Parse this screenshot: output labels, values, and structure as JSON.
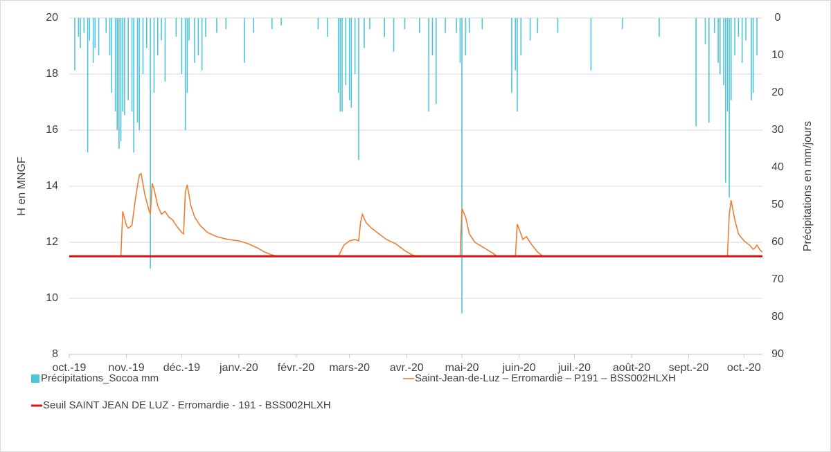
{
  "chart_data": {
    "type": "combo",
    "ylabel": "H en MNGF",
    "y2label": "Précipitations en mm/jours",
    "xlim": [
      0,
      376
    ],
    "xticks": [
      {
        "value": 0,
        "label": "oct.-19"
      },
      {
        "value": 31,
        "label": "nov.-19"
      },
      {
        "value": 61,
        "label": "déc.-19"
      },
      {
        "value": 92,
        "label": "janv.-20"
      },
      {
        "value": 123,
        "label": "févr.-20"
      },
      {
        "value": 152,
        "label": "mars-20"
      },
      {
        "value": 183,
        "label": "avr.-20"
      },
      {
        "value": 213,
        "label": "mai-20"
      },
      {
        "value": 244,
        "label": "juin-20"
      },
      {
        "value": 274,
        "label": "juil.-20"
      },
      {
        "value": 305,
        "label": "août-20"
      },
      {
        "value": 336,
        "label": "sept.-20"
      },
      {
        "value": 366,
        "label": "oct.-20"
      }
    ],
    "ylim": [
      8,
      20
    ],
    "yticks": [
      8,
      10,
      12,
      14,
      16,
      18,
      20
    ],
    "y2lim": [
      0,
      90
    ],
    "y2_reversed": true,
    "y2ticks": [
      0,
      10,
      20,
      30,
      40,
      50,
      60,
      70,
      80,
      90
    ],
    "grid": true,
    "legend": "bottom",
    "series": [
      {
        "name": "Précipitations_Socoa mm",
        "type": "bar",
        "axis": "y2",
        "color": "#4cc4db",
        "x": [
          3,
          5,
          6,
          8,
          10,
          11,
          13,
          14,
          16,
          20,
          22,
          23,
          25,
          26,
          27,
          28,
          29,
          30,
          32,
          34,
          35,
          37,
          38,
          40,
          42,
          44,
          46,
          48,
          50,
          52,
          58,
          61,
          63,
          64,
          65,
          68,
          70,
          72,
          74,
          80,
          85,
          95,
          100,
          110,
          115,
          135,
          140,
          146,
          147,
          148,
          150,
          152,
          153,
          155,
          157,
          160,
          163,
          171,
          176,
          182,
          190,
          195,
          197,
          199,
          204,
          210,
          212,
          213,
          215,
          217,
          224,
          240,
          242,
          243,
          245,
          250,
          254,
          265,
          283,
          300,
          320,
          340,
          345,
          347,
          350,
          352,
          353,
          355,
          356,
          357,
          358,
          359,
          361,
          363,
          365,
          367,
          370,
          371,
          373
        ],
        "values": [
          14,
          5,
          8,
          4,
          36,
          6,
          12,
          8,
          10,
          4,
          10,
          20,
          25,
          30,
          35,
          33,
          25,
          26,
          22,
          25,
          36,
          28,
          30,
          15,
          8,
          67,
          20,
          10,
          6,
          17,
          5,
          15,
          30,
          20,
          6,
          12,
          10,
          14,
          5,
          4,
          3,
          12,
          4,
          3,
          2,
          3,
          5,
          20,
          25,
          25,
          18,
          22,
          24,
          15,
          38,
          8,
          3,
          5,
          9,
          3,
          4,
          25,
          10,
          23,
          4,
          4,
          12,
          79,
          10,
          4,
          3,
          20,
          14,
          25,
          10,
          6,
          4,
          4,
          14,
          3,
          5,
          29,
          7,
          28,
          4,
          12,
          15,
          18,
          44,
          25,
          48,
          22,
          10,
          5,
          12,
          6,
          22,
          20,
          10
        ]
      },
      {
        "name": "Saint-Jean-de-Luz – Erromardie – P191 – BSS002HLXH",
        "type": "line",
        "axis": "y",
        "color": "#ed7d31",
        "x": [
          0,
          28,
          29,
          31,
          32,
          34,
          36,
          38,
          39,
          41,
          43,
          44,
          45,
          46,
          48,
          50,
          52,
          54,
          56,
          58,
          61,
          62,
          63,
          64,
          66,
          68,
          71,
          75,
          80,
          86,
          92,
          97,
          102,
          106,
          110,
          113,
          146,
          149,
          152,
          155,
          157,
          158,
          159,
          161,
          164,
          168,
          172,
          177,
          182,
          186,
          188,
          212,
          213,
          215,
          217,
          220,
          225,
          230,
          232,
          242,
          243,
          245,
          246,
          248,
          251,
          254,
          257,
          357,
          358,
          359,
          361,
          363,
          366,
          369,
          371,
          372,
          373,
          375,
          376
        ],
        "values": [
          11.5,
          11.5,
          13.1,
          12.6,
          12.5,
          12.6,
          13.6,
          14.4,
          14.45,
          13.7,
          13.2,
          13.0,
          14.1,
          13.9,
          13.3,
          13.0,
          13.1,
          12.9,
          12.8,
          12.6,
          12.35,
          12.3,
          13.8,
          14.05,
          13.3,
          12.9,
          12.6,
          12.35,
          12.2,
          12.1,
          12.05,
          11.95,
          11.8,
          11.65,
          11.55,
          11.5,
          11.5,
          11.9,
          12.05,
          12.1,
          12.05,
          12.7,
          13.0,
          12.7,
          12.5,
          12.3,
          12.1,
          11.95,
          11.7,
          11.55,
          11.5,
          11.5,
          13.2,
          12.9,
          12.3,
          12.0,
          11.8,
          11.6,
          11.5,
          11.5,
          12.65,
          12.3,
          12.1,
          12.2,
          11.9,
          11.65,
          11.5,
          11.5,
          13.0,
          13.5,
          12.8,
          12.3,
          12.05,
          11.9,
          11.75,
          11.8,
          11.9,
          11.7,
          11.65
        ]
      },
      {
        "name": "Seuil SAINT JEAN DE LUZ - Erromardie - 191 - BSS002HLXH",
        "type": "line",
        "axis": "y",
        "color": "#e01010",
        "x": [
          0,
          376
        ],
        "values": [
          11.5,
          11.5
        ]
      }
    ]
  }
}
